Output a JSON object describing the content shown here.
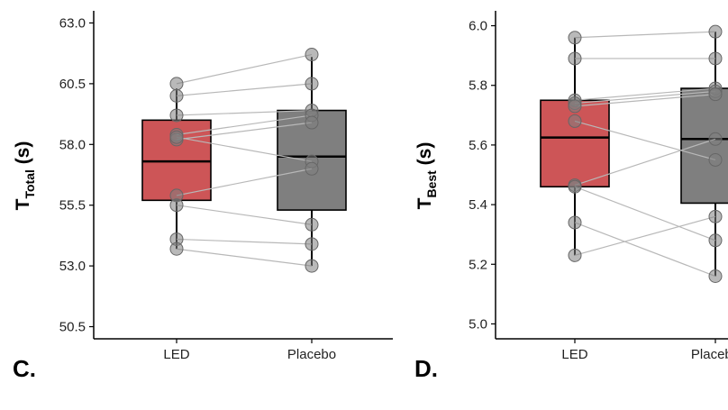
{
  "chart_data": [
    {
      "type": "boxplot",
      "categories": [
        "LED",
        "Placebo"
      ],
      "ylabel": "T",
      "ylabel_sub": "Total",
      "ylabel_unit": "(s)",
      "ylim": [
        50.0,
        63.5
      ],
      "yticks": [
        "50.5",
        "53.0",
        "55.5",
        "58.0",
        "60.5",
        "63.0"
      ],
      "grid": false,
      "box_colors": [
        "#cd5557",
        "#7f7f7f"
      ],
      "boxes": [
        {
          "name": "LED",
          "q1": 55.7,
          "median": 57.3,
          "q3": 59.0,
          "whisker_low": 53.7,
          "whisker_high": 60.3
        },
        {
          "name": "Placebo",
          "q1": 55.3,
          "median": 57.5,
          "q3": 59.4,
          "whisker_low": 53.0,
          "whisker_high": 61.6
        }
      ],
      "paired_points": [
        [
          60.5,
          61.7
        ],
        [
          60.0,
          60.5
        ],
        [
          59.2,
          59.4
        ],
        [
          58.4,
          59.2
        ],
        [
          58.2,
          58.9
        ],
        [
          58.3,
          57.3
        ],
        [
          55.9,
          57.0
        ],
        [
          55.5,
          54.7
        ],
        [
          54.1,
          53.9
        ],
        [
          53.7,
          53.0
        ]
      ],
      "panel": "C."
    },
    {
      "type": "boxplot",
      "categories": [
        "LED",
        "Placebo"
      ],
      "ylabel": "T",
      "ylabel_sub": "Best",
      "ylabel_unit": "(s)",
      "ylim": [
        4.95,
        6.05
      ],
      "yticks": [
        "5.0",
        "5.2",
        "5.4",
        "5.6",
        "5.8",
        "6.0"
      ],
      "grid": false,
      "box_colors": [
        "#cd5557",
        "#7f7f7f"
      ],
      "boxes": [
        {
          "name": "LED",
          "q1": 5.46,
          "median": 5.625,
          "q3": 5.75,
          "whisker_low": 5.23,
          "whisker_high": 5.96
        },
        {
          "name": "Placebo",
          "q1": 5.405,
          "median": 5.62,
          "q3": 5.79,
          "whisker_low": 5.16,
          "whisker_high": 5.98
        }
      ],
      "paired_points": [
        [
          5.96,
          5.98
        ],
        [
          5.89,
          5.89
        ],
        [
          5.75,
          5.79
        ],
        [
          5.74,
          5.78
        ],
        [
          5.73,
          5.77
        ],
        [
          5.68,
          5.55
        ],
        [
          5.465,
          5.62
        ],
        [
          5.46,
          5.28
        ],
        [
          5.34,
          5.16
        ],
        [
          5.23,
          5.36
        ]
      ],
      "panel": "D."
    }
  ]
}
